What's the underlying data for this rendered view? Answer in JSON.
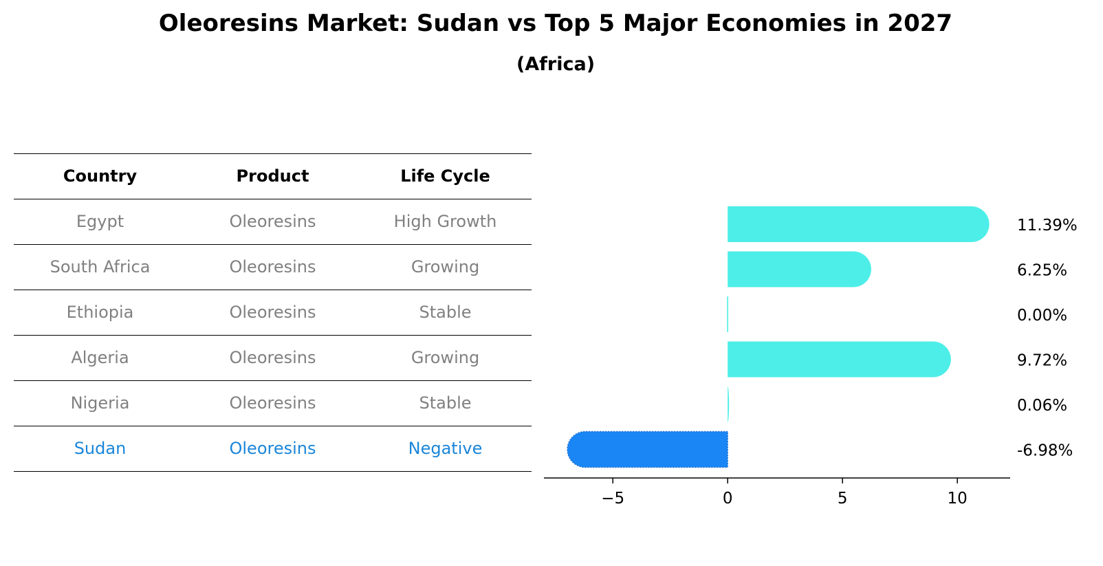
{
  "title": "Oleoresins Market: Sudan vs Top 5 Major Economies in 2027",
  "subtitle": "(Africa)",
  "table": {
    "headers": [
      "Country",
      "Product",
      "Life Cycle"
    ],
    "rows": [
      [
        "Egypt",
        "Oleoresins",
        "High Growth"
      ],
      [
        "South Africa",
        "Oleoresins",
        "Growing"
      ],
      [
        "Ethiopia",
        "Oleoresins",
        "Stable"
      ],
      [
        "Algeria",
        "Oleoresins",
        "Growing"
      ],
      [
        "Nigeria",
        "Oleoresins",
        "Stable"
      ],
      [
        "Sudan",
        "Oleoresins",
        "Negative"
      ]
    ],
    "highlight_row": 5
  },
  "chart_data": {
    "type": "bar",
    "orientation": "horizontal",
    "categories": [
      "Egypt",
      "South Africa",
      "Ethiopia",
      "Algeria",
      "Nigeria",
      "Sudan"
    ],
    "values": [
      11.39,
      6.25,
      0.0,
      9.72,
      0.06,
      -6.98
    ],
    "labels": [
      "11.39%",
      "6.25%",
      "0.00%",
      "9.72%",
      "0.06%",
      "-6.98%"
    ],
    "xlim": [
      -8.0,
      12.3
    ],
    "xticks": [
      -5,
      0,
      5,
      10
    ],
    "xtick_labels": [
      "−5",
      "0",
      "5",
      "10"
    ],
    "highlight": "Sudan",
    "colors": {
      "default": "#4deee8",
      "highlight": "#1a86f5"
    }
  }
}
